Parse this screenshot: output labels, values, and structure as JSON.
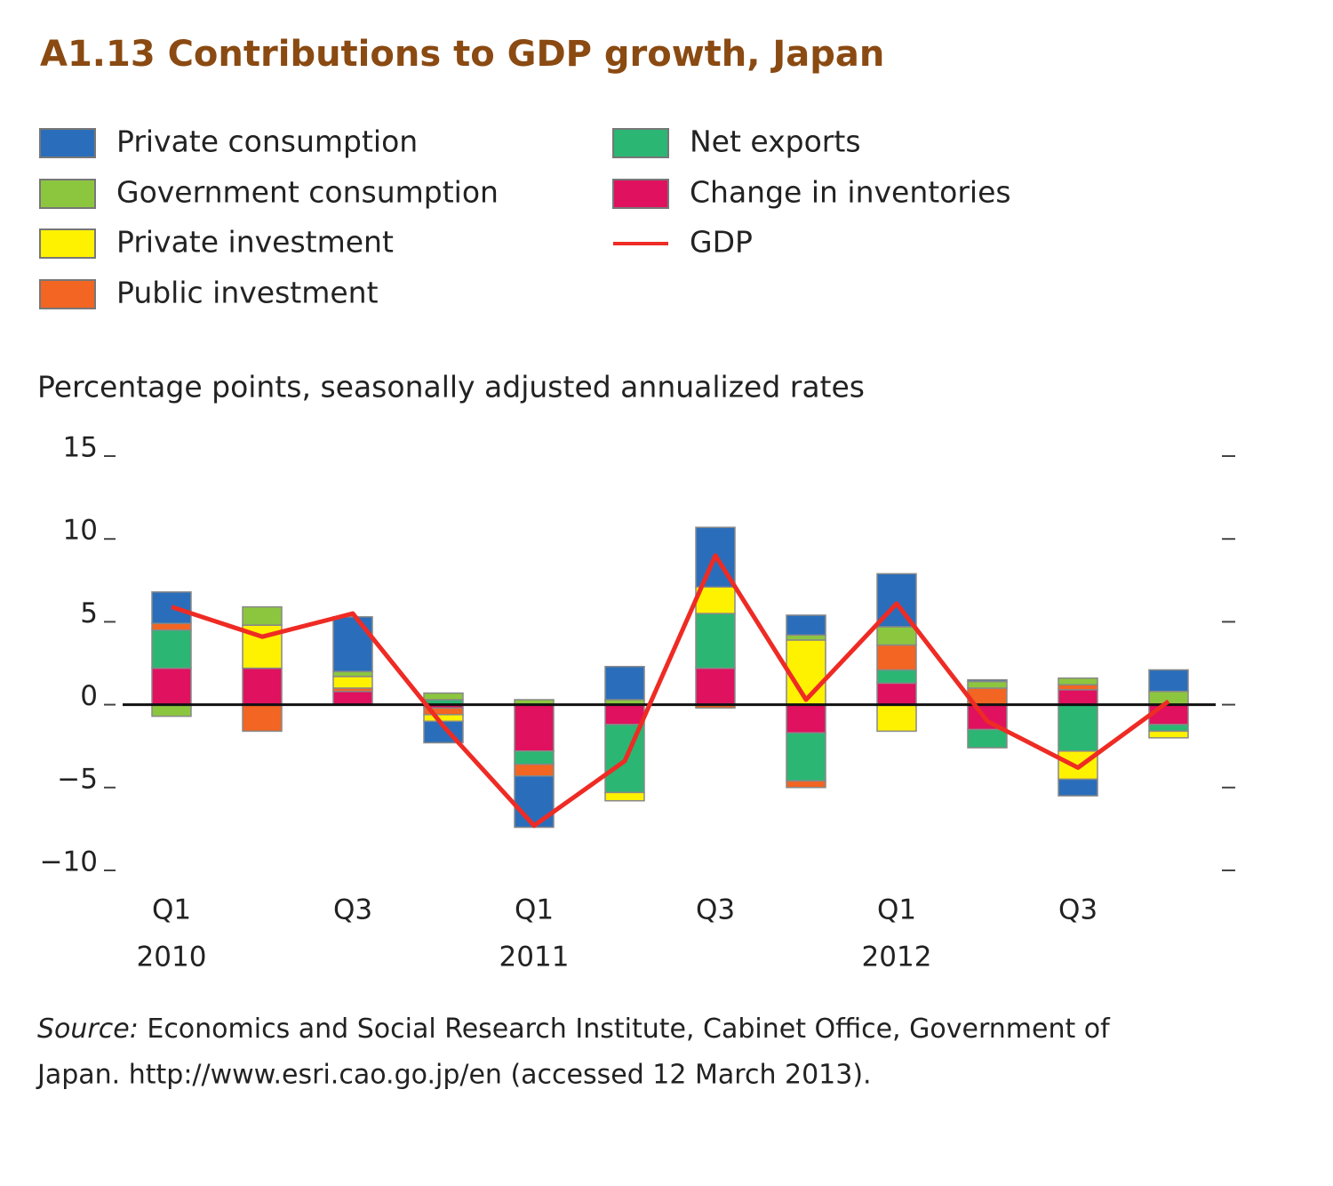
{
  "chart_data": {
    "type": "bar",
    "title": "A1.13  Contributions to GDP growth, Japan",
    "y_axis_label": "Percentage points, seasonally adjusted annualized rates",
    "categories": [
      "Q1",
      null,
      "Q3",
      null,
      "Q1",
      null,
      "Q3",
      null,
      "Q1",
      null,
      "Q3",
      null
    ],
    "category_years": [
      "2010",
      null,
      null,
      null,
      "2011",
      null,
      null,
      null,
      "2012",
      null,
      null,
      null
    ],
    "series": [
      {
        "name": "Private consumption",
        "color": "#2a6ebb",
        "values": [
          1.9,
          0,
          3.3,
          -1.3,
          -3.1,
          2.0,
          3.6,
          1.2,
          3.2,
          0.1,
          -1.0,
          1.3
        ]
      },
      {
        "name": "Government consumption",
        "color": "#8cc63f",
        "values": [
          -0.7,
          1.1,
          0.3,
          0.4,
          0.3,
          0.3,
          0,
          0.3,
          1.1,
          0.4,
          0.4,
          0.8
        ]
      },
      {
        "name": "Private investment",
        "color": "#fff200",
        "values": [
          0,
          2.6,
          0.7,
          -0.4,
          0,
          -0.5,
          1.6,
          3.9,
          -1.6,
          0,
          -1.7,
          -0.4
        ]
      },
      {
        "name": "Public investment",
        "color": "#f26522",
        "values": [
          0.4,
          -1.6,
          0.2,
          -0.4,
          -0.7,
          0,
          -0.2,
          -0.4,
          1.5,
          1.0,
          0.3,
          0
        ]
      },
      {
        "name": "Net exports",
        "color": "#2bb673",
        "values": [
          2.3,
          0,
          0,
          0.3,
          -0.8,
          -4.1,
          3.3,
          -2.9,
          0.8,
          -1.1,
          -2.8,
          -0.4
        ]
      },
      {
        "name": "Change in inventories",
        "color": "#e0115f",
        "values": [
          2.2,
          2.2,
          0.8,
          -0.2,
          -2.8,
          -1.2,
          2.2,
          -1.7,
          1.3,
          -1.5,
          0.9,
          -1.2
        ]
      },
      {
        "name": "GDP",
        "type": "line",
        "color": "#ee2b24",
        "values": [
          5.9,
          4.1,
          5.5,
          -1.3,
          -7.3,
          -3.4,
          9.0,
          0.3,
          6.1,
          -1.0,
          -3.8,
          0.2
        ]
      }
    ],
    "ylim": [
      -10,
      15
    ],
    "yticks": [
      {
        "value": -10,
        "label": "−10"
      },
      {
        "value": -5,
        "label": "−5"
      },
      0,
      5,
      10,
      15
    ],
    "source_label": "Source:",
    "source_text": "Economics and Social Research Institute, Cabinet Office, Government of",
    "source_text_2": "Japan. http://www.esri.cao.go.jp/en (accessed 12 March 2013)."
  }
}
